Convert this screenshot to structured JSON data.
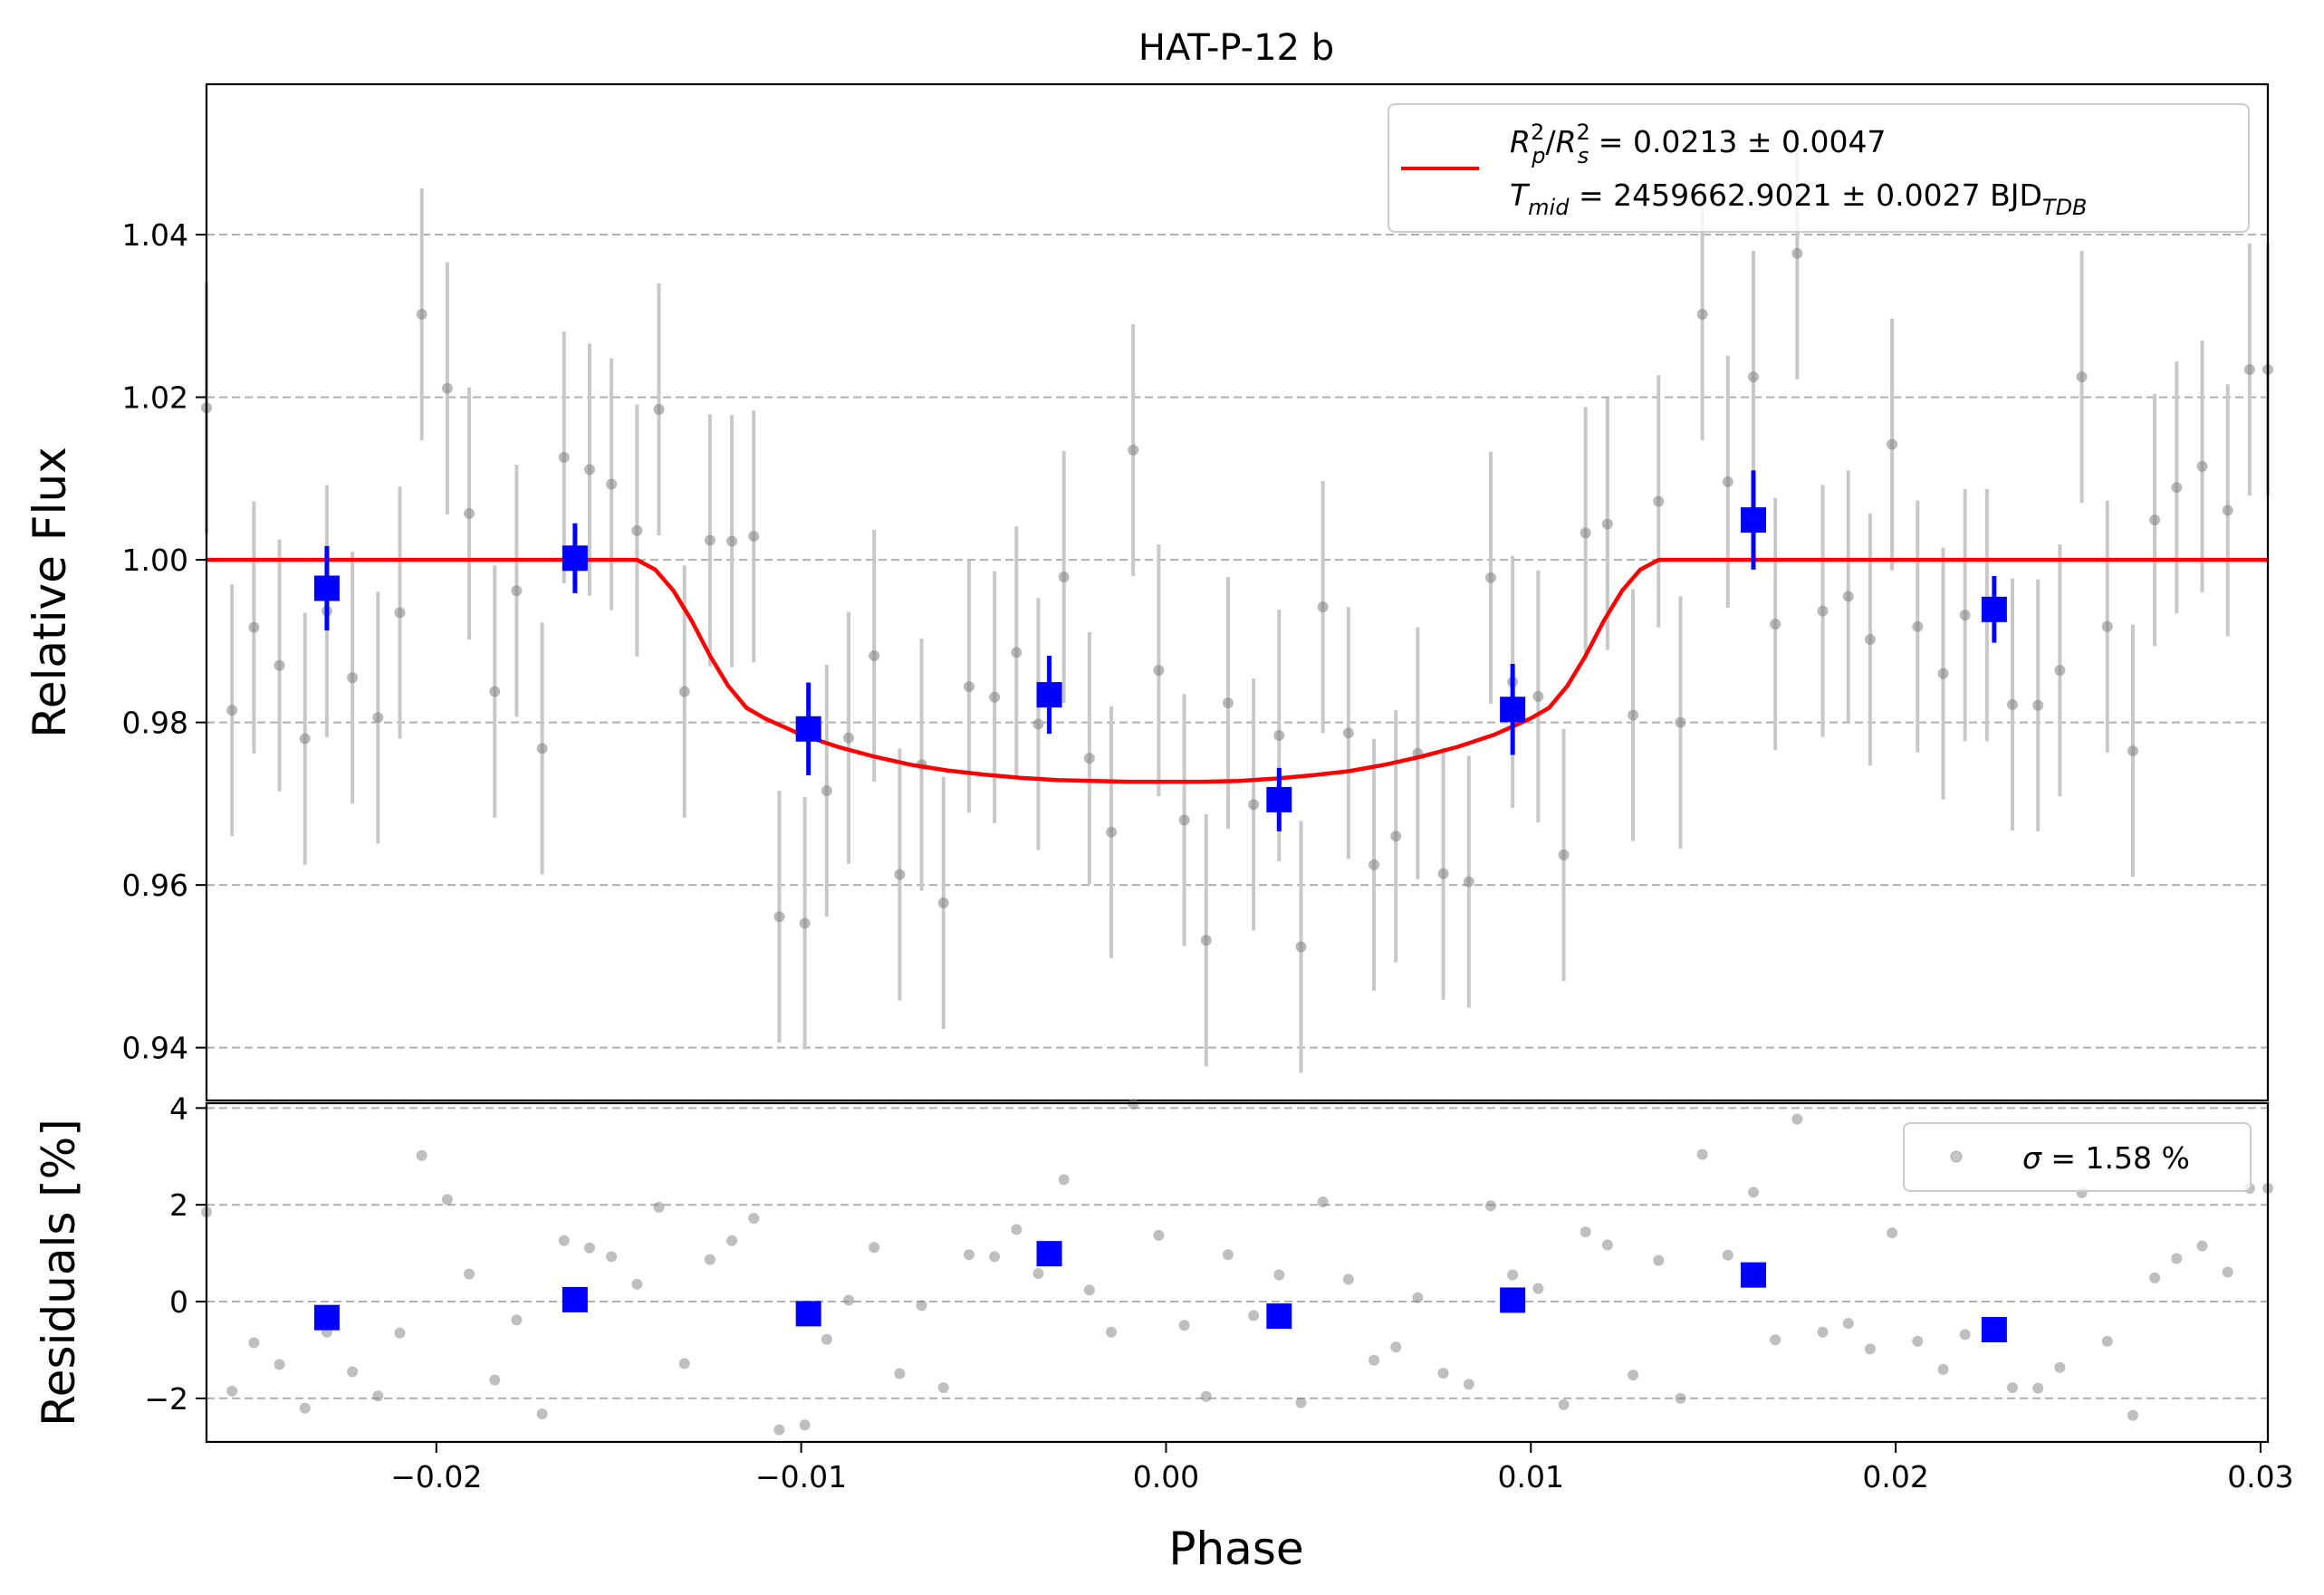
{
  "chart_data": [
    {
      "panel": "main",
      "type": "scatter",
      "title": "HAT-P-12 b",
      "xlabel": "",
      "ylabel": "Relative Flux",
      "xlim": [
        -0.0263,
        0.0302
      ],
      "ylim": [
        0.9335,
        1.0585
      ],
      "grid": "horizontal dashed",
      "yticks": [
        0.94,
        0.96,
        0.98,
        1.0,
        1.02,
        1.04
      ],
      "ytick_labels": [
        "0.94",
        "0.96",
        "0.98",
        "1.00",
        "1.02",
        "1.04"
      ],
      "legend_position": "top-right",
      "legend": {
        "line1": {
          "rp": "R",
          "rp_sup": "2",
          "rp_sub": "p",
          "rs": "R",
          "rs_sup": "2",
          "rs_sub": "s",
          "value": " = 0.0213 ± 0.0047"
        },
        "line2": {
          "t": "T",
          "t_sub": "mid",
          "value": " = 2459662.9021 ± 0.0027 BJD",
          "unit_sub": "TDB"
        }
      },
      "colors": {
        "raw": "#808080",
        "raw_err": "#c8c8c8",
        "binned": "#0000ff",
        "model": "#ff0000"
      },
      "series": [
        {
          "kind": "raw",
          "x": [
            -0.0263,
            -0.0256,
            -0.025,
            -0.0243,
            -0.0236,
            -0.023,
            -0.0223,
            -0.0216,
            -0.021,
            -0.0204,
            -0.0197,
            -0.0191,
            -0.0184,
            -0.0178,
            -0.0171,
            -0.0165,
            -0.0158,
            -0.0152,
            -0.0145,
            -0.0139,
            -0.0132,
            -0.0125,
            -0.0119,
            -0.0113,
            -0.0106,
            -0.0099,
            -0.0093,
            -0.0087,
            -0.008,
            -0.0073,
            -0.0067,
            -0.0061,
            -0.0054,
            -0.0047,
            -0.0041,
            -0.0035,
            -0.0028,
            -0.0021,
            -0.0015,
            -0.0009,
            -0.0002,
            0.0005,
            0.0011,
            0.0017,
            0.0024,
            0.0031,
            0.0037,
            0.0043,
            0.005,
            0.0057,
            0.0063,
            0.0069,
            0.0076,
            0.0083,
            0.0089,
            0.0095,
            0.0102,
            0.0109,
            0.0115,
            0.0121,
            0.0128,
            0.0135,
            0.0141,
            0.0147,
            0.0154,
            0.0161,
            0.0167,
            0.0173,
            0.018,
            0.0187,
            0.0193,
            0.0199,
            0.0206,
            0.0213,
            0.0219,
            0.0225,
            0.0232,
            0.0239,
            0.0245,
            0.0251,
            0.0258,
            0.0265,
            0.0271,
            0.0277,
            0.0284,
            0.0291,
            0.0297,
            0.0302
          ],
          "y": [
            1.0187,
            0.9815,
            0.9917,
            0.987,
            0.978,
            0.9937,
            0.9855,
            0.9806,
            0.9935,
            1.0302,
            1.0211,
            1.0057,
            0.9838,
            0.9962,
            0.9768,
            1.0126,
            1.0111,
            1.0093,
            1.0036,
            1.0185,
            0.9838,
            1.0024,
            1.0023,
            1.0029,
            0.9561,
            0.9553,
            0.9716,
            0.9781,
            0.9882,
            0.9613,
            0.9748,
            0.9578,
            0.9844,
            0.9831,
            0.9886,
            0.9798,
            0.9979,
            0.9756,
            0.9665,
            1.0135,
            0.9864,
            0.968,
            0.9532,
            0.9824,
            0.9699,
            0.9784,
            0.9524,
            0.9942,
            0.9787,
            0.9625,
            0.966,
            0.9762,
            0.9614,
            0.9604,
            0.9978,
            0.985,
            0.9832,
            0.9637,
            1.0033,
            1.0044,
            0.9809,
            1.0072,
            0.98,
            1.0302,
            1.0096,
            1.0225,
            0.9921,
            1.0377,
            0.9937,
            0.9955,
            0.9902,
            1.0142,
            0.9918,
            0.986,
            0.9932,
            0.9932,
            0.9822,
            0.9821,
            0.9864,
            1.0225,
            0.9918,
            0.9765,
            1.0049,
            1.0089,
            1.0115,
            1.0061,
            1.0234,
            1.0234
          ],
          "yerr": 0.0155
        },
        {
          "kind": "binned",
          "x": [
            -0.023,
            -0.0162,
            -0.0098,
            -0.0032,
            0.0031,
            0.0095,
            0.0161,
            0.0227
          ],
          "y": [
            0.9965,
            1.0002,
            0.9792,
            0.9834,
            0.9705,
            0.9816,
            1.0049,
            0.9939
          ],
          "yerr": [
            0.0052,
            0.0043,
            0.0057,
            0.0048,
            0.0039,
            0.0056,
            0.0061,
            0.0041
          ]
        },
        {
          "kind": "model",
          "x": [
            -0.0263,
            -0.0145,
            -0.014,
            -0.0135,
            -0.013,
            -0.0125,
            -0.012,
            -0.0115,
            -0.011,
            -0.0105,
            -0.01,
            -0.009,
            -0.008,
            -0.007,
            -0.006,
            -0.005,
            -0.004,
            -0.003,
            -0.002,
            -0.001,
            0.0,
            0.001,
            0.002,
            0.003,
            0.004,
            0.005,
            0.006,
            0.007,
            0.008,
            0.009,
            0.01,
            0.0105,
            0.011,
            0.0115,
            0.012,
            0.0125,
            0.013,
            0.0135,
            0.014,
            0.0145,
            0.0302
          ],
          "y": [
            1.0,
            1.0,
            0.9988,
            0.9962,
            0.9925,
            0.9882,
            0.9845,
            0.9818,
            0.9805,
            0.9795,
            0.9785,
            0.977,
            0.9758,
            0.9748,
            0.9741,
            0.9736,
            0.9732,
            0.9729,
            0.9728,
            0.9727,
            0.9727,
            0.9727,
            0.9728,
            0.9731,
            0.9735,
            0.974,
            0.9748,
            0.9758,
            0.977,
            0.9785,
            0.9805,
            0.9818,
            0.9845,
            0.9882,
            0.9925,
            0.9962,
            0.9988,
            1.0,
            1.0,
            1.0,
            1.0
          ]
        }
      ]
    },
    {
      "panel": "residuals",
      "type": "scatter",
      "xlabel": "Phase",
      "ylabel": "Residuals [%]",
      "xlim": [
        -0.0263,
        0.0302
      ],
      "ylim": [
        -2.9,
        4.1
      ],
      "grid": "horizontal dashed",
      "yticks": [
        -2,
        0,
        2,
        4
      ],
      "ytick_labels": [
        "−2",
        "0",
        "2",
        "4"
      ],
      "xticks": [
        -0.02,
        -0.01,
        0.0,
        0.01,
        0.02,
        0.03
      ],
      "xtick_labels": [
        "−0.02",
        "−0.01",
        "0.00",
        "0.01",
        "0.02",
        "0.03"
      ],
      "legend_position": "top-right",
      "legend": {
        "sigma": "σ",
        "value": " = 1.58 %"
      },
      "series": [
        {
          "kind": "raw",
          "x": [
            -0.0263,
            -0.0256,
            -0.025,
            -0.0243,
            -0.0236,
            -0.023,
            -0.0223,
            -0.0216,
            -0.021,
            -0.0204,
            -0.0197,
            -0.0191,
            -0.0184,
            -0.0178,
            -0.0171,
            -0.0165,
            -0.0158,
            -0.0152,
            -0.0145,
            -0.0139,
            -0.0132,
            -0.0125,
            -0.0119,
            -0.0113,
            -0.0106,
            -0.0099,
            -0.0093,
            -0.0087,
            -0.008,
            -0.0073,
            -0.0067,
            -0.0061,
            -0.0054,
            -0.0047,
            -0.0041,
            -0.0035,
            -0.0028,
            -0.0021,
            -0.0015,
            -0.0009,
            -0.0002,
            0.0005,
            0.0011,
            0.0017,
            0.0024,
            0.0031,
            0.0037,
            0.0043,
            0.005,
            0.0057,
            0.0063,
            0.0069,
            0.0076,
            0.0083,
            0.0089,
            0.0095,
            0.0102,
            0.0109,
            0.0115,
            0.0121,
            0.0128,
            0.0135,
            0.0141,
            0.0147,
            0.0154,
            0.0161,
            0.0167,
            0.0173,
            0.018,
            0.0187,
            0.0193,
            0.0199,
            0.0206,
            0.0213,
            0.0219,
            0.0225,
            0.0232,
            0.0239,
            0.0245,
            0.0251,
            0.0258,
            0.0265,
            0.0271,
            0.0277,
            0.0284,
            0.0291,
            0.0297,
            0.0302
          ],
          "y": [
            1.85,
            -1.85,
            -0.85,
            -1.3,
            -2.2,
            -0.63,
            -1.45,
            -1.95,
            -0.65,
            3.02,
            2.11,
            0.57,
            -1.62,
            -0.38,
            -2.32,
            1.26,
            1.11,
            0.93,
            0.36,
            1.95,
            -1.28,
            0.87,
            1.26,
            1.72,
            -2.65,
            -2.55,
            -0.78,
            0.03,
            1.12,
            -1.49,
            -0.08,
            -1.78,
            0.97,
            0.93,
            1.49,
            0.58,
            2.52,
            0.24,
            -0.63,
            4.08,
            1.37,
            -0.49,
            -1.96,
            0.97,
            -0.29,
            0.55,
            -2.09,
            2.06,
            0.46,
            -1.21,
            -0.94,
            0.08,
            -1.48,
            -1.71,
            1.98,
            0.55,
            0.27,
            -2.13,
            1.44,
            1.17,
            -1.52,
            0.85,
            -2.0,
            3.04,
            0.96,
            2.26,
            -0.79,
            3.77,
            -0.63,
            -0.45,
            -0.98,
            1.42,
            -0.82,
            -1.4,
            -0.68,
            -0.68,
            -1.78,
            -1.79,
            -1.36,
            2.25,
            -0.82,
            -2.35,
            0.49,
            0.89,
            1.15,
            0.61,
            2.34,
            2.34
          ]
        },
        {
          "kind": "binned",
          "x": [
            -0.023,
            -0.0162,
            -0.0098,
            -0.0032,
            0.0031,
            0.0095,
            0.0161,
            0.0227
          ],
          "y": [
            -0.33,
            0.04,
            -0.25,
            0.99,
            -0.3,
            0.03,
            0.55,
            -0.58
          ]
        }
      ]
    }
  ]
}
